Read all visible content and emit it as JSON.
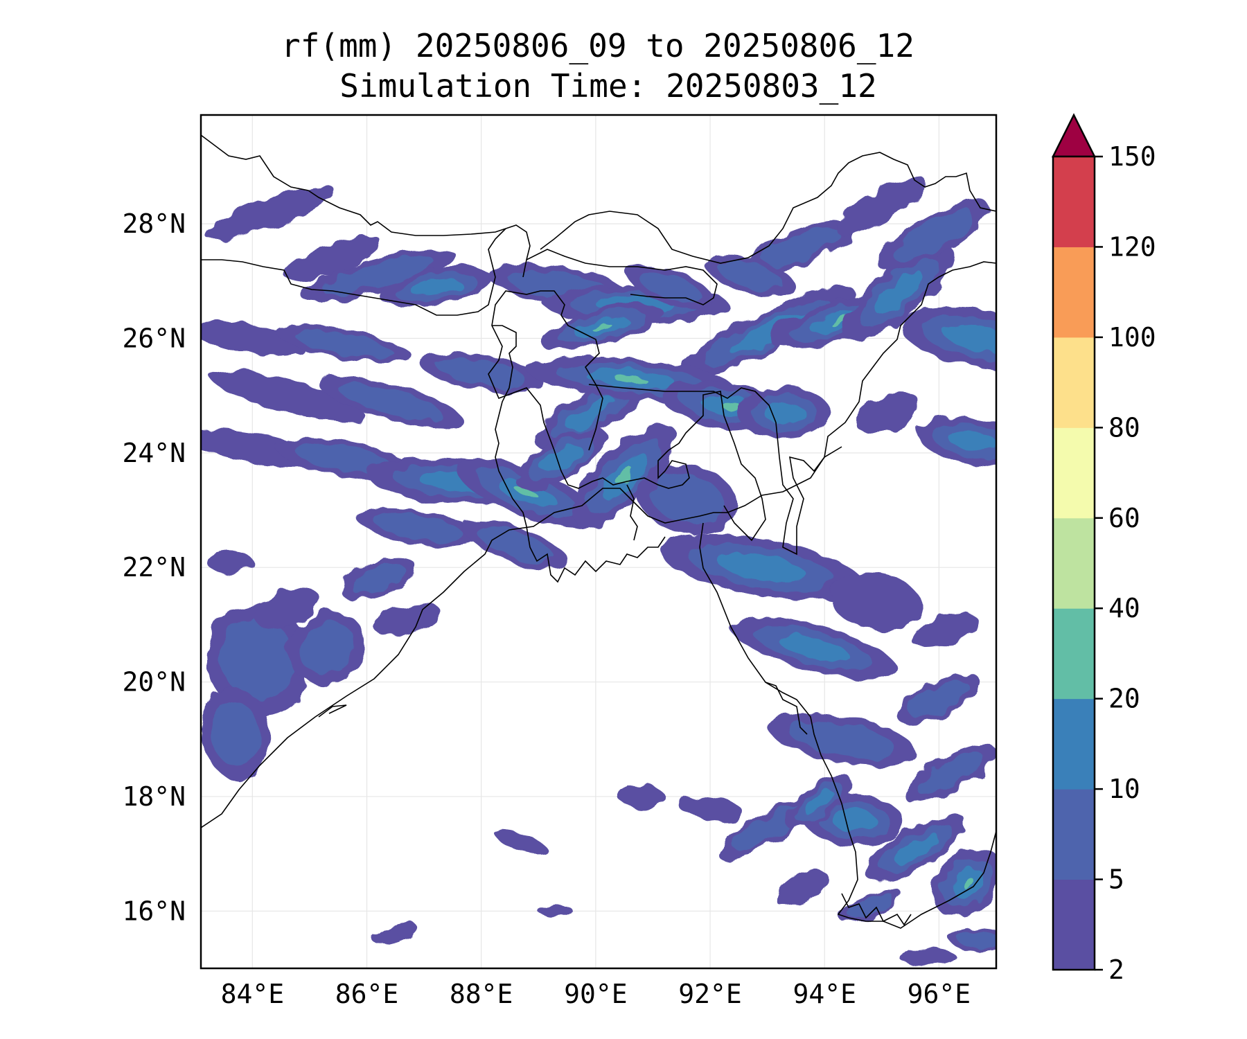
{
  "title": {
    "line1": "rf(mm) 20250806_09 to 20250806_12",
    "line2": "Simulation Time: 20250803_12"
  },
  "map": {
    "lon_range": [
      83.1,
      97.0
    ],
    "lat_range": [
      15.0,
      29.9
    ],
    "x_ticks": [
      {
        "value": 84,
        "label": "84°E"
      },
      {
        "value": 86,
        "label": "86°E"
      },
      {
        "value": 88,
        "label": "88°E"
      },
      {
        "value": 90,
        "label": "90°E"
      },
      {
        "value": 92,
        "label": "92°E"
      },
      {
        "value": 94,
        "label": "94°E"
      },
      {
        "value": 96,
        "label": "96°E"
      }
    ],
    "y_ticks": [
      {
        "value": 16,
        "label": "16°N"
      },
      {
        "value": 18,
        "label": "18°N"
      },
      {
        "value": 20,
        "label": "20°N"
      },
      {
        "value": 22,
        "label": "22°N"
      },
      {
        "value": 24,
        "label": "24°N"
      },
      {
        "value": 26,
        "label": "26°N"
      },
      {
        "value": 28,
        "label": "28°N"
      }
    ],
    "gridlines": true
  },
  "colorbar": {
    "levels": [
      "2",
      "5",
      "10",
      "20",
      "40",
      "60",
      "80",
      "100",
      "120",
      "150"
    ],
    "colors": [
      "#5a4fa2",
      "#4e64ad",
      "#3a80b9",
      "#62bea6",
      "#bee3a0",
      "#f4fbad",
      "#fde08b",
      "#f99c57",
      "#d33f4d"
    ],
    "extend_color": "#9e0142"
  },
  "rain_areas": {
    "blobs": [
      [
        84.3,
        28.2,
        1.2,
        0.25,
        20,
        0
      ],
      [
        86.2,
        27.1,
        1.4,
        0.3,
        15,
        1
      ],
      [
        87.2,
        26.9,
        1.0,
        0.3,
        10,
        2
      ],
      [
        85.4,
        27.4,
        0.9,
        0.25,
        20,
        0
      ],
      [
        89.4,
        26.9,
        1.3,
        0.35,
        -10,
        1
      ],
      [
        90.7,
        26.6,
        1.6,
        0.35,
        0,
        2
      ],
      [
        90.1,
        26.2,
        1.1,
        0.3,
        15,
        3
      ],
      [
        91.3,
        26.9,
        0.8,
        0.3,
        -20,
        1
      ],
      [
        93.0,
        26.1,
        1.7,
        0.35,
        25,
        2
      ],
      [
        94.3,
        26.3,
        1.3,
        0.35,
        15,
        3
      ],
      [
        95.3,
        26.8,
        1.2,
        0.4,
        40,
        2
      ],
      [
        95.9,
        27.8,
        1.1,
        0.35,
        30,
        1
      ],
      [
        96.7,
        26.0,
        0.5,
        1.4,
        80,
        2
      ],
      [
        93.6,
        27.6,
        1.0,
        0.3,
        20,
        1
      ],
      [
        95.0,
        28.3,
        0.9,
        0.25,
        30,
        0
      ],
      [
        92.7,
        27.1,
        0.8,
        0.3,
        -15,
        1
      ],
      [
        83.9,
        26.0,
        1.0,
        0.25,
        -10,
        0
      ],
      [
        85.6,
        25.9,
        1.2,
        0.25,
        -10,
        1
      ],
      [
        84.6,
        25.0,
        1.4,
        0.28,
        -15,
        0
      ],
      [
        86.4,
        24.9,
        1.3,
        0.3,
        -15,
        1
      ],
      [
        88.0,
        25.4,
        1.1,
        0.3,
        -10,
        1
      ],
      [
        84.0,
        24.1,
        1.2,
        0.25,
        -10,
        0
      ],
      [
        85.6,
        23.9,
        1.2,
        0.3,
        -10,
        1
      ],
      [
        87.6,
        23.5,
        1.6,
        0.4,
        -5,
        2
      ],
      [
        88.8,
        23.3,
        1.3,
        0.4,
        -20,
        3
      ],
      [
        86.9,
        22.7,
        1.1,
        0.3,
        -10,
        1
      ],
      [
        88.6,
        22.4,
        1.0,
        0.3,
        -20,
        1
      ],
      [
        89.9,
        24.7,
        1.1,
        0.35,
        30,
        2
      ],
      [
        90.6,
        25.3,
        1.8,
        0.35,
        -5,
        3
      ],
      [
        92.4,
        24.8,
        1.3,
        0.4,
        -10,
        3
      ],
      [
        93.3,
        24.7,
        0.8,
        0.45,
        0,
        2
      ],
      [
        90.5,
        23.6,
        1.2,
        0.45,
        45,
        3
      ],
      [
        89.4,
        23.9,
        0.9,
        0.35,
        30,
        2
      ],
      [
        91.6,
        23.2,
        0.6,
        0.9,
        75,
        1
      ],
      [
        92.9,
        22.0,
        0.5,
        1.8,
        80,
        2
      ],
      [
        93.8,
        20.6,
        0.4,
        1.5,
        75,
        2
      ],
      [
        94.3,
        19.0,
        0.4,
        1.3,
        80,
        1
      ],
      [
        94.5,
        17.6,
        0.45,
        0.9,
        85,
        2
      ],
      [
        95.6,
        17.1,
        1.0,
        0.35,
        30,
        2
      ],
      [
        96.5,
        16.5,
        0.7,
        0.5,
        40,
        3
      ],
      [
        96.2,
        18.4,
        0.9,
        0.3,
        30,
        1
      ],
      [
        96.0,
        19.7,
        0.8,
        0.3,
        25,
        1
      ],
      [
        96.1,
        20.9,
        0.6,
        0.25,
        20,
        0
      ],
      [
        94.9,
        21.4,
        0.5,
        0.8,
        80,
        0
      ],
      [
        96.6,
        24.2,
        0.4,
        1.0,
        80,
        2
      ],
      [
        95.1,
        24.7,
        0.6,
        0.3,
        20,
        0
      ],
      [
        96.7,
        15.5,
        0.5,
        0.2,
        0,
        1
      ],
      [
        84.1,
        20.4,
        0.9,
        1.0,
        20,
        1
      ],
      [
        83.7,
        19.1,
        0.6,
        0.8,
        10,
        1
      ],
      [
        85.3,
        20.6,
        0.7,
        0.6,
        30,
        1
      ],
      [
        84.6,
        21.3,
        0.6,
        0.3,
        20,
        0
      ],
      [
        86.2,
        21.8,
        0.7,
        0.3,
        20,
        1
      ],
      [
        86.7,
        21.1,
        0.6,
        0.25,
        15,
        0
      ],
      [
        83.6,
        22.1,
        0.4,
        0.2,
        0,
        0
      ],
      [
        93.1,
        17.5,
        1.1,
        0.25,
        30,
        1
      ],
      [
        93.9,
        17.9,
        0.7,
        0.25,
        35,
        2
      ],
      [
        92.0,
        17.8,
        0.6,
        0.2,
        -10,
        0
      ],
      [
        90.8,
        18.0,
        0.4,
        0.2,
        0,
        0
      ],
      [
        93.6,
        16.4,
        0.5,
        0.25,
        30,
        0
      ],
      [
        88.7,
        17.2,
        0.5,
        0.15,
        -20,
        0
      ],
      [
        86.5,
        15.6,
        0.4,
        0.15,
        20,
        0
      ],
      [
        89.3,
        16.0,
        0.3,
        0.12,
        0,
        0
      ],
      [
        95.8,
        15.2,
        0.5,
        0.15,
        0,
        0
      ],
      [
        94.8,
        16.1,
        0.6,
        0.2,
        20,
        1
      ]
    ]
  }
}
